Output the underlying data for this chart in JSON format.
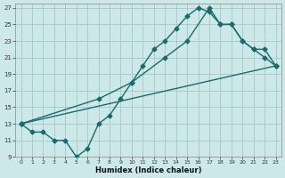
{
  "xlabel": "Humidex (Indice chaleur)",
  "bg_color": "#cce8e8",
  "grid_color": "#aacccc",
  "line_color": "#1a6b6b",
  "xlim": [
    -0.5,
    23.5
  ],
  "ylim": [
    9,
    27.5
  ],
  "xticks": [
    0,
    1,
    2,
    3,
    4,
    5,
    6,
    7,
    8,
    9,
    10,
    11,
    12,
    13,
    14,
    15,
    16,
    17,
    18,
    19,
    20,
    21,
    22,
    23
  ],
  "yticks": [
    9,
    11,
    13,
    15,
    17,
    19,
    21,
    23,
    25,
    27
  ],
  "line1_x": [
    0,
    1,
    2,
    3,
    4,
    5,
    6,
    7,
    8,
    9,
    10,
    11,
    12,
    13,
    14,
    15,
    16,
    17,
    18,
    19,
    20,
    21,
    22,
    23
  ],
  "line1_y": [
    13,
    12,
    12,
    11,
    11,
    9,
    10,
    13,
    14,
    16,
    18,
    20,
    22,
    23,
    24.5,
    26,
    27,
    26.5,
    25,
    25,
    23,
    22,
    21,
    20
  ],
  "line2_x": [
    0,
    7,
    10,
    13,
    15,
    17,
    18,
    19,
    20,
    21,
    22,
    23
  ],
  "line2_y": [
    13,
    16,
    18,
    21,
    23,
    27,
    25,
    25,
    23,
    22,
    22,
    20
  ],
  "line3_x": [
    0,
    23
  ],
  "line3_y": [
    13,
    20
  ]
}
